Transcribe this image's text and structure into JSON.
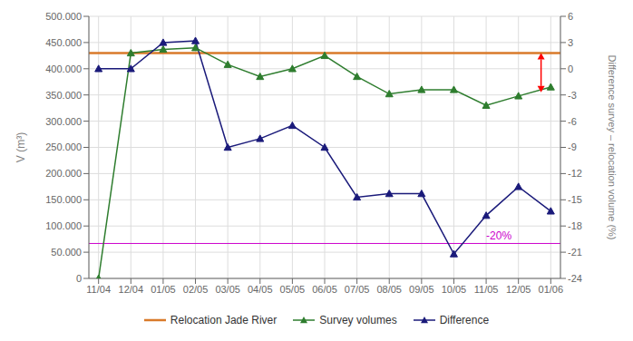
{
  "chart_data": {
    "type": "line",
    "x": [
      0,
      1,
      2,
      3,
      4,
      5,
      6,
      7,
      8,
      9,
      10,
      11,
      12,
      13,
      14
    ],
    "xlim": [
      -0.3,
      14.3
    ],
    "xticks": [
      {
        "value": 0,
        "label": "11/04"
      },
      {
        "value": 1,
        "label": "12/04"
      },
      {
        "value": 2,
        "label": "01/05"
      },
      {
        "value": 3,
        "label": "02/05"
      },
      {
        "value": 4,
        "label": "03/05"
      },
      {
        "value": 5,
        "label": "04/05"
      },
      {
        "value": 6,
        "label": "05/05"
      },
      {
        "value": 7,
        "label": "06/05"
      },
      {
        "value": 8,
        "label": "07/05"
      },
      {
        "value": 9,
        "label": "08/05"
      },
      {
        "value": 10,
        "label": "09/05"
      },
      {
        "value": 11,
        "label": "10/05"
      },
      {
        "value": 12,
        "label": "11/05"
      },
      {
        "value": 13,
        "label": "12/05"
      },
      {
        "value": 14,
        "label": "01/06"
      }
    ],
    "y_label": "V (m³)",
    "y2_label": "Difference  survey  –  relocation  volume  (%)",
    "ylim": [
      0,
      500000
    ],
    "yticks": [
      0,
      {
        "value": 50000,
        "label": "50.000"
      },
      {
        "value": 100000,
        "label": "100.000"
      },
      {
        "value": 150000,
        "label": "150.000"
      },
      {
        "value": 200000,
        "label": "200.000"
      },
      {
        "value": 250000,
        "label": "250.000"
      },
      {
        "value": 300000,
        "label": "300.000"
      },
      {
        "value": 350000,
        "label": "350.000"
      },
      {
        "value": 400000,
        "label": "400.000"
      },
      {
        "value": 450000,
        "label": "450.000"
      },
      {
        "value": 500000,
        "label": "500.000"
      }
    ],
    "y2lim": [
      -24,
      6
    ],
    "y2ticks": [
      -24,
      -21,
      -18,
      -15,
      -12,
      -9,
      -6,
      -3,
      0,
      3,
      6
    ],
    "series": [
      {
        "name": "Survey volumes",
        "color": "#2e7d2e",
        "marker": "triangle",
        "values": [
          0,
          430000,
          437000,
          440000,
          408000,
          385000,
          400000,
          425000,
          385000,
          352000,
          360000,
          360000,
          330000,
          348000,
          365000
        ]
      },
      {
        "name": "Difference",
        "color": "#1a1a7a",
        "marker": "triangle",
        "axis": "y2",
        "values": [
          0,
          0,
          3.0,
          3.2,
          -9.0,
          -8.0,
          -6.5,
          -9.0,
          -14.7,
          -14.3,
          -14.3,
          -21.2,
          -16.8,
          -13.5,
          -16.3
        ]
      }
    ],
    "reference_lines": [
      {
        "name": "Relocation Jade River",
        "y": 430000,
        "color": "#d97a2a"
      },
      {
        "y": -20,
        "axis": "y2",
        "color": "#cc00cc"
      }
    ],
    "annotations": [
      {
        "text": "-20%",
        "x": 12.0,
        "y": -19.5,
        "axis": "y2",
        "color": "#cc00cc"
      }
    ],
    "arrows": [
      {
        "x": 13.7,
        "y_start": 1.8,
        "y_end": -2.7,
        "axis": "y2",
        "color": "#ff0000"
      }
    ],
    "grid": true,
    "legend": "bottom"
  }
}
